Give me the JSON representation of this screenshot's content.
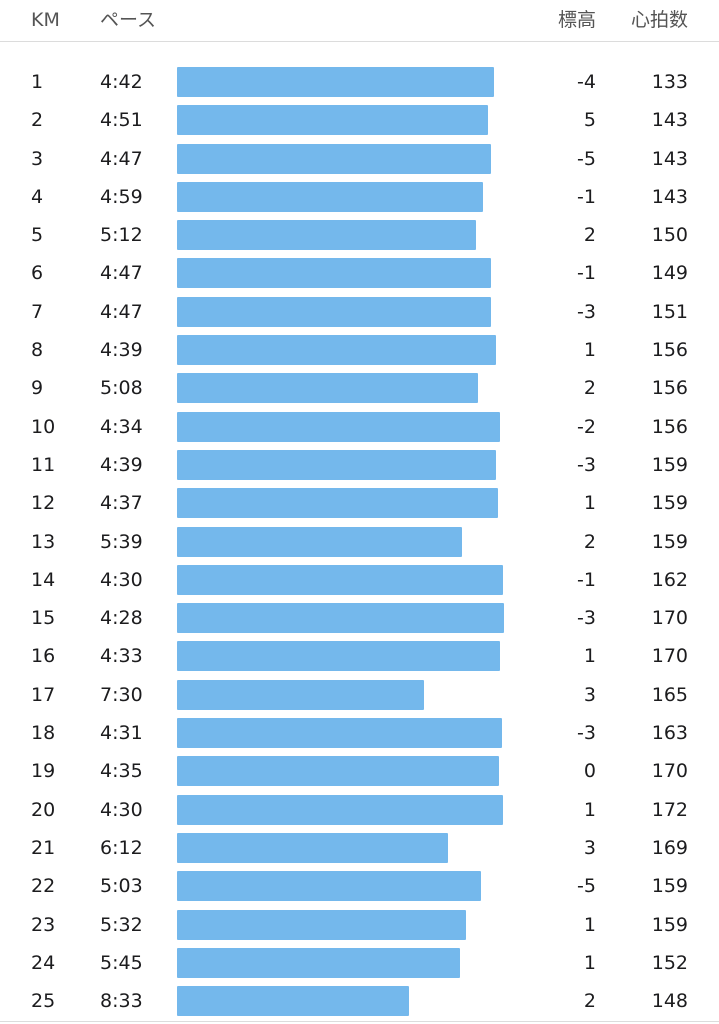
{
  "header": {
    "km": "KM",
    "pace": "ペース",
    "elevation": "標高",
    "heart_rate": "心拍数"
  },
  "bar_color": "#74b8ec",
  "splits": [
    {
      "km": "1",
      "pace": "4:42",
      "elev": "-4",
      "hr": "133"
    },
    {
      "km": "2",
      "pace": "4:51",
      "elev": "5",
      "hr": "143"
    },
    {
      "km": "3",
      "pace": "4:47",
      "elev": "-5",
      "hr": "143"
    },
    {
      "km": "4",
      "pace": "4:59",
      "elev": "-1",
      "hr": "143"
    },
    {
      "km": "5",
      "pace": "5:12",
      "elev": "2",
      "hr": "150"
    },
    {
      "km": "6",
      "pace": "4:47",
      "elev": "-1",
      "hr": "149"
    },
    {
      "km": "7",
      "pace": "4:47",
      "elev": "-3",
      "hr": "151"
    },
    {
      "km": "8",
      "pace": "4:39",
      "elev": "1",
      "hr": "156"
    },
    {
      "km": "9",
      "pace": "5:08",
      "elev": "2",
      "hr": "156"
    },
    {
      "km": "10",
      "pace": "4:34",
      "elev": "-2",
      "hr": "156"
    },
    {
      "km": "11",
      "pace": "4:39",
      "elev": "-3",
      "hr": "159"
    },
    {
      "km": "12",
      "pace": "4:37",
      "elev": "1",
      "hr": "159"
    },
    {
      "km": "13",
      "pace": "5:39",
      "elev": "2",
      "hr": "159"
    },
    {
      "km": "14",
      "pace": "4:30",
      "elev": "-1",
      "hr": "162"
    },
    {
      "km": "15",
      "pace": "4:28",
      "elev": "-3",
      "hr": "170"
    },
    {
      "km": "16",
      "pace": "4:33",
      "elev": "1",
      "hr": "170"
    },
    {
      "km": "17",
      "pace": "7:30",
      "elev": "3",
      "hr": "165"
    },
    {
      "km": "18",
      "pace": "4:31",
      "elev": "-3",
      "hr": "163"
    },
    {
      "km": "19",
      "pace": "4:35",
      "elev": "0",
      "hr": "170"
    },
    {
      "km": "20",
      "pace": "4:30",
      "elev": "1",
      "hr": "172"
    },
    {
      "km": "21",
      "pace": "6:12",
      "elev": "3",
      "hr": "169"
    },
    {
      "km": "22",
      "pace": "5:03",
      "elev": "-5",
      "hr": "159"
    },
    {
      "km": "23",
      "pace": "5:32",
      "elev": "1",
      "hr": "159"
    },
    {
      "km": "24",
      "pace": "5:45",
      "elev": "1",
      "hr": "152"
    },
    {
      "km": "25",
      "pace": "8:33",
      "elev": "2",
      "hr": "148"
    }
  ]
}
